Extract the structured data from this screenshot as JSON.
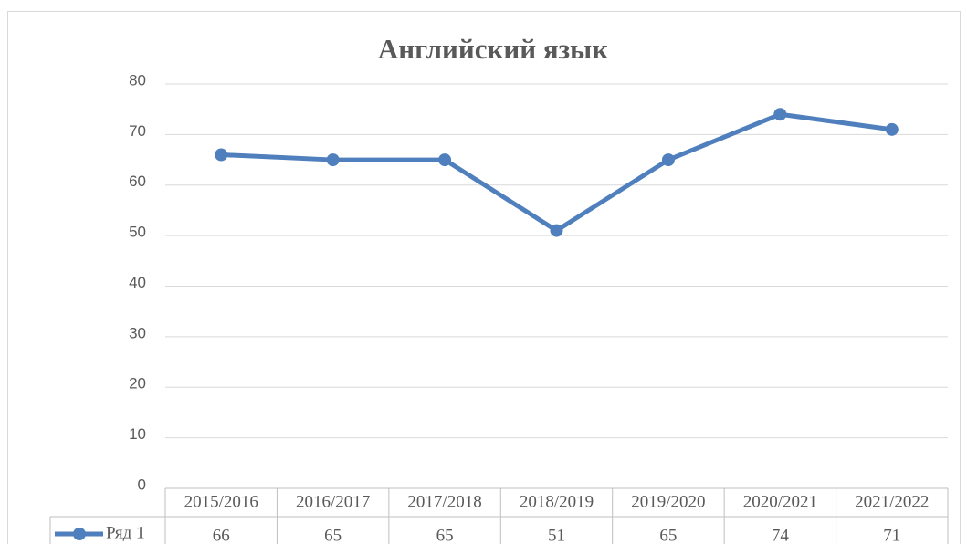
{
  "chart_data": {
    "type": "line",
    "title": "Английский язык",
    "categories": [
      "2015/2016",
      "2016/2017",
      "2017/2018",
      "2018/2019",
      "2019/2020",
      "2020/2021",
      "2021/2022"
    ],
    "series": [
      {
        "name": "Ряд 1",
        "color": "#4f7fbc",
        "values": [
          66,
          65,
          65,
          51,
          65,
          74,
          71
        ]
      }
    ],
    "ylim": [
      0,
      80
    ],
    "yticks": [
      0,
      10,
      20,
      30,
      40,
      50,
      60,
      70,
      80
    ],
    "grid": true
  }
}
